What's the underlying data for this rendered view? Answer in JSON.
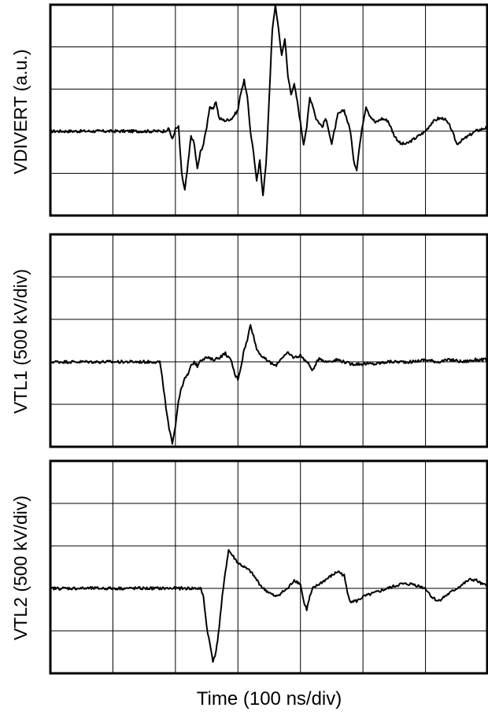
{
  "chart_data": [
    {
      "type": "line",
      "ylabel": "VDIVERT (a.u.)",
      "xlabel": "",
      "x_unit": "div",
      "y_unit": "div",
      "xlim": [
        0,
        7
      ],
      "ylim": [
        -2,
        3
      ],
      "grid": true,
      "series": [
        {
          "points": [
            [
              0.0,
              0.0
            ],
            [
              1.8,
              0.0
            ],
            [
              1.9,
              0.05
            ],
            [
              1.95,
              -0.2
            ],
            [
              2.0,
              0.05
            ],
            [
              2.05,
              0.1
            ],
            [
              2.1,
              -1.0
            ],
            [
              2.15,
              -1.4
            ],
            [
              2.2,
              -0.8
            ],
            [
              2.25,
              -0.1
            ],
            [
              2.3,
              -0.3
            ],
            [
              2.35,
              -0.9
            ],
            [
              2.4,
              -0.5
            ],
            [
              2.45,
              -0.3
            ],
            [
              2.5,
              0.1
            ],
            [
              2.55,
              0.6
            ],
            [
              2.6,
              0.5
            ],
            [
              2.65,
              0.7
            ],
            [
              2.7,
              0.3
            ],
            [
              2.8,
              0.25
            ],
            [
              2.9,
              0.3
            ],
            [
              3.0,
              0.5
            ],
            [
              3.05,
              0.95
            ],
            [
              3.1,
              1.2
            ],
            [
              3.15,
              0.8
            ],
            [
              3.2,
              0.0
            ],
            [
              3.25,
              -0.5
            ],
            [
              3.3,
              -1.2
            ],
            [
              3.35,
              -0.7
            ],
            [
              3.4,
              -1.5
            ],
            [
              3.45,
              -0.8
            ],
            [
              3.5,
              0.8
            ],
            [
              3.55,
              2.4
            ],
            [
              3.6,
              3.0
            ],
            [
              3.65,
              2.4
            ],
            [
              3.7,
              1.8
            ],
            [
              3.75,
              2.2
            ],
            [
              3.8,
              1.3
            ],
            [
              3.85,
              0.9
            ],
            [
              3.9,
              1.1
            ],
            [
              3.95,
              0.7
            ],
            [
              4.0,
              0.2
            ],
            [
              4.05,
              -0.3
            ],
            [
              4.1,
              0.1
            ],
            [
              4.15,
              0.8
            ],
            [
              4.2,
              0.6
            ],
            [
              4.25,
              0.3
            ],
            [
              4.3,
              0.2
            ],
            [
              4.35,
              0.1
            ],
            [
              4.4,
              0.3
            ],
            [
              4.45,
              0.05
            ],
            [
              4.5,
              -0.3
            ],
            [
              4.6,
              0.4
            ],
            [
              4.7,
              0.5
            ],
            [
              4.8,
              0.0
            ],
            [
              4.85,
              -0.7
            ],
            [
              4.9,
              -0.9
            ],
            [
              4.95,
              -0.3
            ],
            [
              5.0,
              0.2
            ],
            [
              5.05,
              0.6
            ],
            [
              5.1,
              0.4
            ],
            [
              5.2,
              0.2
            ],
            [
              5.3,
              0.3
            ],
            [
              5.4,
              0.25
            ],
            [
              5.5,
              -0.1
            ],
            [
              5.6,
              -0.3
            ],
            [
              5.7,
              -0.3
            ],
            [
              5.8,
              -0.2
            ],
            [
              5.9,
              -0.1
            ],
            [
              6.0,
              0.0
            ],
            [
              6.1,
              0.2
            ],
            [
              6.2,
              0.3
            ],
            [
              6.3,
              0.3
            ],
            [
              6.4,
              0.1
            ],
            [
              6.5,
              -0.3
            ],
            [
              6.6,
              -0.2
            ],
            [
              6.7,
              -0.1
            ],
            [
              6.8,
              0.0
            ],
            [
              6.9,
              0.05
            ],
            [
              7.0,
              0.1
            ]
          ]
        }
      ]
    },
    {
      "type": "line",
      "ylabel": "VTL1 (500 kV/div)",
      "xlabel": "",
      "x_unit": "div",
      "y_unit": "div",
      "xlim": [
        0,
        7
      ],
      "ylim": [
        -2,
        3
      ],
      "grid": true,
      "series": [
        {
          "points": [
            [
              0.0,
              0.0
            ],
            [
              1.75,
              0.0
            ],
            [
              1.8,
              -0.5
            ],
            [
              1.85,
              -1.1
            ],
            [
              1.9,
              -1.6
            ],
            [
              1.95,
              -1.9
            ],
            [
              2.0,
              -1.5
            ],
            [
              2.05,
              -0.9
            ],
            [
              2.1,
              -0.6
            ],
            [
              2.15,
              -0.4
            ],
            [
              2.2,
              -0.3
            ],
            [
              2.25,
              -0.1
            ],
            [
              2.3,
              0.0
            ],
            [
              2.35,
              -0.1
            ],
            [
              2.4,
              0.05
            ],
            [
              2.5,
              0.1
            ],
            [
              2.6,
              0.05
            ],
            [
              2.7,
              0.1
            ],
            [
              2.8,
              0.2
            ],
            [
              2.9,
              0.0
            ],
            [
              2.95,
              -0.3
            ],
            [
              3.0,
              -0.4
            ],
            [
              3.05,
              -0.1
            ],
            [
              3.1,
              0.3
            ],
            [
              3.15,
              0.5
            ],
            [
              3.2,
              0.9
            ],
            [
              3.25,
              0.6
            ],
            [
              3.3,
              0.3
            ],
            [
              3.4,
              0.1
            ],
            [
              3.5,
              0.0
            ],
            [
              3.6,
              -0.1
            ],
            [
              3.7,
              0.1
            ],
            [
              3.8,
              0.2
            ],
            [
              3.9,
              0.1
            ],
            [
              4.0,
              0.15
            ],
            [
              4.1,
              0.0
            ],
            [
              4.2,
              -0.2
            ],
            [
              4.3,
              0.1
            ],
            [
              4.4,
              0.0
            ],
            [
              4.6,
              0.05
            ],
            [
              4.8,
              -0.05
            ],
            [
              5.0,
              -0.05
            ],
            [
              5.2,
              -0.05
            ],
            [
              5.4,
              0.0
            ],
            [
              5.6,
              0.0
            ],
            [
              5.8,
              0.0
            ],
            [
              6.0,
              0.05
            ],
            [
              6.2,
              0.0
            ],
            [
              6.4,
              0.05
            ],
            [
              6.6,
              0.0
            ],
            [
              6.8,
              0.05
            ],
            [
              7.0,
              0.05
            ]
          ]
        }
      ]
    },
    {
      "type": "line",
      "ylabel": "VTL2 (500 kV/div)",
      "xlabel": "Time (100 ns/div)",
      "x_unit": "div",
      "y_unit": "div",
      "xlim": [
        0,
        7
      ],
      "ylim": [
        -2,
        3
      ],
      "grid": true,
      "series": [
        {
          "points": [
            [
              0.0,
              0.0
            ],
            [
              2.4,
              0.0
            ],
            [
              2.45,
              -0.2
            ],
            [
              2.5,
              -0.9
            ],
            [
              2.55,
              -1.3
            ],
            [
              2.6,
              -1.7
            ],
            [
              2.65,
              -1.5
            ],
            [
              2.7,
              -0.9
            ],
            [
              2.75,
              -0.2
            ],
            [
              2.8,
              0.4
            ],
            [
              2.85,
              0.9
            ],
            [
              2.9,
              0.8
            ],
            [
              3.0,
              0.6
            ],
            [
              3.1,
              0.5
            ],
            [
              3.2,
              0.4
            ],
            [
              3.3,
              0.2
            ],
            [
              3.4,
              0.0
            ],
            [
              3.5,
              -0.1
            ],
            [
              3.6,
              -0.2
            ],
            [
              3.7,
              -0.1
            ],
            [
              3.8,
              0.0
            ],
            [
              3.9,
              0.2
            ],
            [
              4.0,
              0.1
            ],
            [
              4.05,
              -0.3
            ],
            [
              4.1,
              -0.5
            ],
            [
              4.15,
              -0.2
            ],
            [
              4.2,
              0.0
            ],
            [
              4.3,
              0.1
            ],
            [
              4.4,
              0.2
            ],
            [
              4.5,
              0.3
            ],
            [
              4.6,
              0.4
            ],
            [
              4.7,
              0.3
            ],
            [
              4.75,
              -0.1
            ],
            [
              4.8,
              -0.3
            ],
            [
              4.9,
              -0.3
            ],
            [
              5.0,
              -0.2
            ],
            [
              5.2,
              -0.1
            ],
            [
              5.4,
              0.0
            ],
            [
              5.6,
              0.1
            ],
            [
              5.8,
              0.1
            ],
            [
              6.0,
              0.0
            ],
            [
              6.1,
              -0.2
            ],
            [
              6.2,
              -0.3
            ],
            [
              6.3,
              -0.2
            ],
            [
              6.4,
              -0.1
            ],
            [
              6.5,
              0.0
            ],
            [
              6.6,
              0.1
            ],
            [
              6.7,
              0.2
            ],
            [
              6.8,
              0.2
            ],
            [
              6.9,
              0.1
            ],
            [
              7.0,
              0.05
            ]
          ]
        }
      ]
    }
  ],
  "colors": {
    "trace": "#000000",
    "grid": "#000000",
    "panel_bg": "#ffffff"
  }
}
